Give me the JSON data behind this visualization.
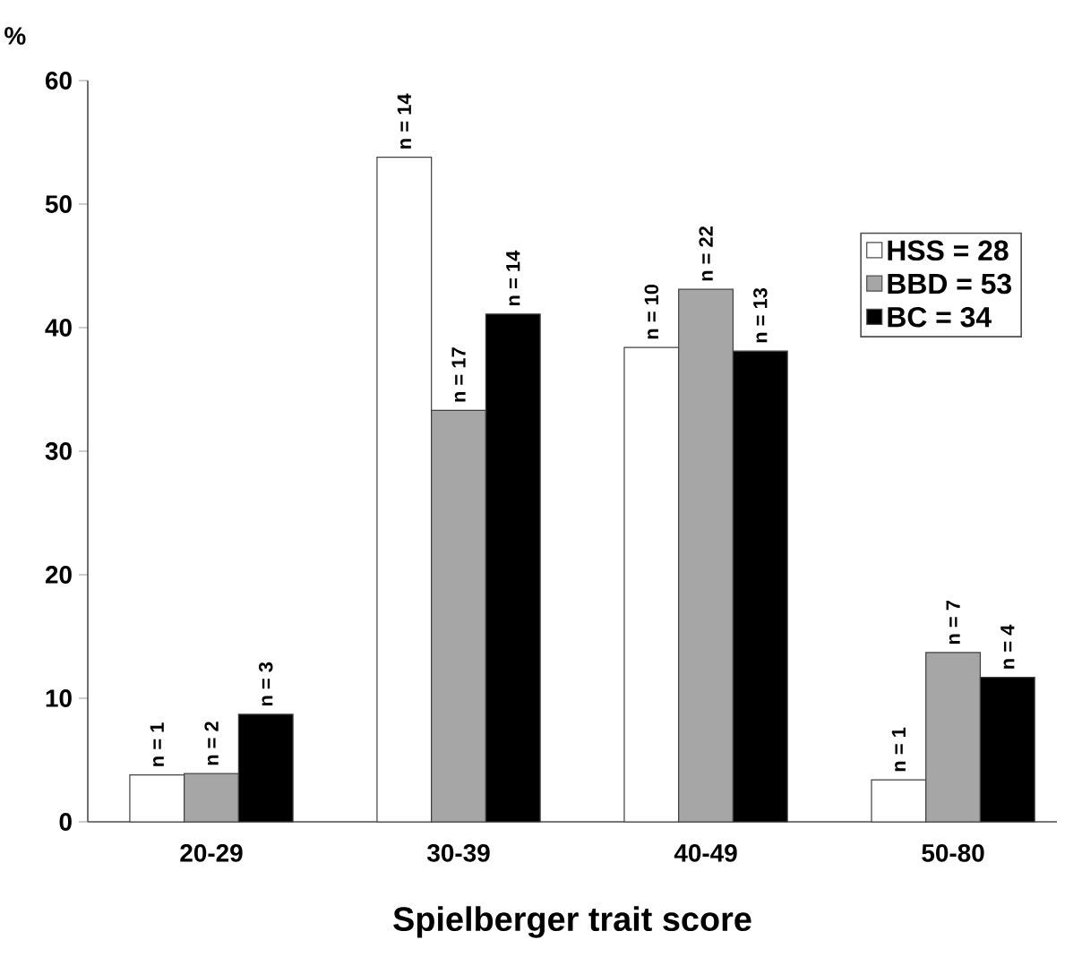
{
  "chart_data": {
    "type": "bar",
    "xlabel": "Spielberger trait score",
    "ylabel": "%",
    "categories": [
      "20-29",
      "30-39",
      "40-49",
      "50-80"
    ],
    "series": [
      {
        "name": "HSS = 28",
        "color": "#ffffff",
        "values": [
          3.8,
          53.8,
          38.4,
          3.4
        ]
      },
      {
        "name": "BBD = 53",
        "color": "#a6a6a6",
        "values": [
          3.9,
          33.3,
          43.1,
          13.7
        ]
      },
      {
        "name": "BC = 34",
        "color": "#000000",
        "values": [
          8.7,
          41.1,
          38.1,
          11.7
        ]
      }
    ],
    "annotations": [
      "n = 1",
      "n = 14",
      "n = 10",
      "n = 1",
      "n = 2",
      "n = 17",
      "n = 22",
      "n = 7",
      "n = 3",
      "n = 14",
      "n = 13",
      "n = 4"
    ],
    "ylim": [
      0,
      60
    ],
    "yticks": [
      0,
      10,
      20,
      30,
      40,
      50,
      60
    ],
    "legend": "top right"
  }
}
